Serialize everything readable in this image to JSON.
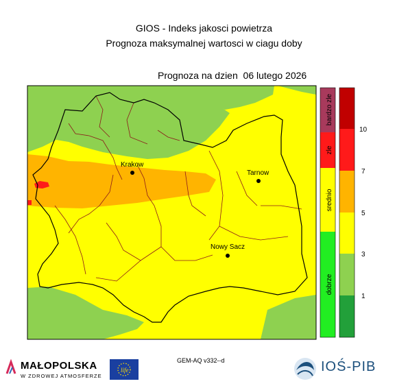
{
  "header": {
    "title": "GIOS - Indeks jakosci powietrza",
    "subtitle": "Prognoza maksymalnej wartosci w ciagu doby",
    "forecast_date": "Prognoza na dzien  06 lutego 2026"
  },
  "cities": [
    {
      "name": "Krakow"
    },
    {
      "name": "Tarnow"
    },
    {
      "name": "Nowy Sacz"
    }
  ],
  "category_bar": [
    {
      "label": "bardzo zle",
      "color": "#a83a5c"
    },
    {
      "label": "zle",
      "color": "#ff1a1a"
    },
    {
      "label": "srednio",
      "color": "#ffff00"
    },
    {
      "label": "dobrze",
      "color": "#22ee22"
    }
  ],
  "scale_bar": {
    "colors": [
      "#22a03a",
      "#8ed150",
      "#ffff00",
      "#ffb400",
      "#ff1a1a",
      "#c00000"
    ],
    "ticks": [
      "1",
      "3",
      "5",
      "7",
      "10"
    ]
  },
  "map_colors": {
    "good_green": "#8ed150",
    "moderate_yellow": "#ffff00",
    "orange": "#ffb400",
    "red": "#ff1a1a",
    "border": "#8b1a1a",
    "outline": "#000000"
  },
  "footer": {
    "model": "GEM-AQ v332--d",
    "malopolska_name": "MAŁOPOLSKA",
    "malopolska_tagline": "W ZDROWEJ ATMOSFERZE",
    "ios_name": "IOŚ-PIB"
  }
}
